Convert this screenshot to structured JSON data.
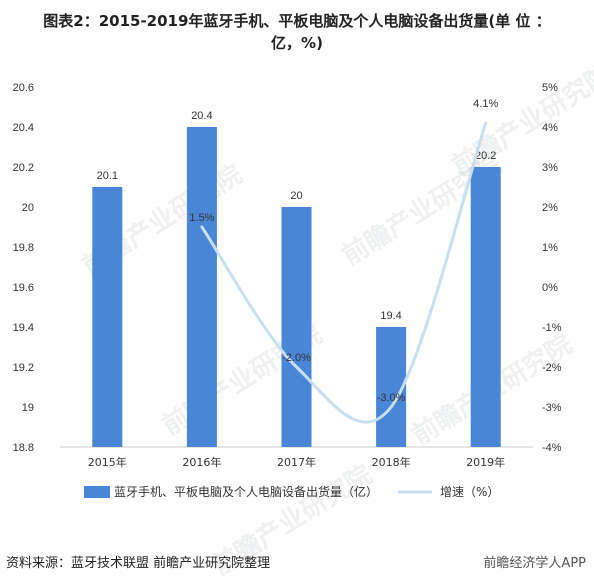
{
  "title_line1": "图表2：2015-2019年蓝牙手机、平板电脑及个人电脑设备出货量(单 位 ：",
  "title_line2": "亿，%)",
  "source": "资料来源：蓝牙技术联盟 前瞻产业研究院整理",
  "logo_text": "前瞻经济学人APP",
  "watermark": "前瞻产业研究院",
  "colors": {
    "bar": "#4a86d8",
    "line": "#c8dff2",
    "axis": "#cccccc",
    "text": "#333333"
  },
  "chart_data": {
    "type": "bar",
    "categories": [
      "2015年",
      "2016年",
      "2017年",
      "2018年",
      "2019年"
    ],
    "series": [
      {
        "name": "蓝牙手机、平板电脑及个人电脑设备出货量（亿）",
        "type": "bar",
        "axis": "left",
        "values": [
          20.1,
          20.4,
          20,
          19.4,
          20.2
        ],
        "labels": [
          "20.1",
          "20.4",
          "20",
          "19.4",
          "20.2"
        ]
      },
      {
        "name": "增速（%）",
        "type": "line",
        "axis": "right",
        "values": [
          null,
          1.5,
          -2.0,
          -3.0,
          4.1
        ],
        "labels": [
          "",
          "1.5%",
          "-2.0%",
          "-3.0%",
          "4.1%"
        ]
      }
    ],
    "y_left": {
      "min": 18.8,
      "max": 20.6,
      "ticks": [
        18.8,
        19,
        19.2,
        19.4,
        19.6,
        19.8,
        20,
        20.2,
        20.4,
        20.6
      ],
      "tick_labels": [
        "18.8",
        "19",
        "19.2",
        "19.4",
        "19.6",
        "19.8",
        "20",
        "20.2",
        "20.4",
        "20.6"
      ]
    },
    "y_right": {
      "min": -4,
      "max": 5,
      "ticks": [
        -4,
        -3,
        -2,
        -1,
        0,
        1,
        2,
        3,
        4,
        5
      ],
      "tick_labels": [
        "-4%",
        "-3%",
        "-2%",
        "-1%",
        "0%",
        "1%",
        "2%",
        "3%",
        "4%",
        "5%"
      ]
    },
    "grid": false,
    "legend_position": "bottom"
  }
}
